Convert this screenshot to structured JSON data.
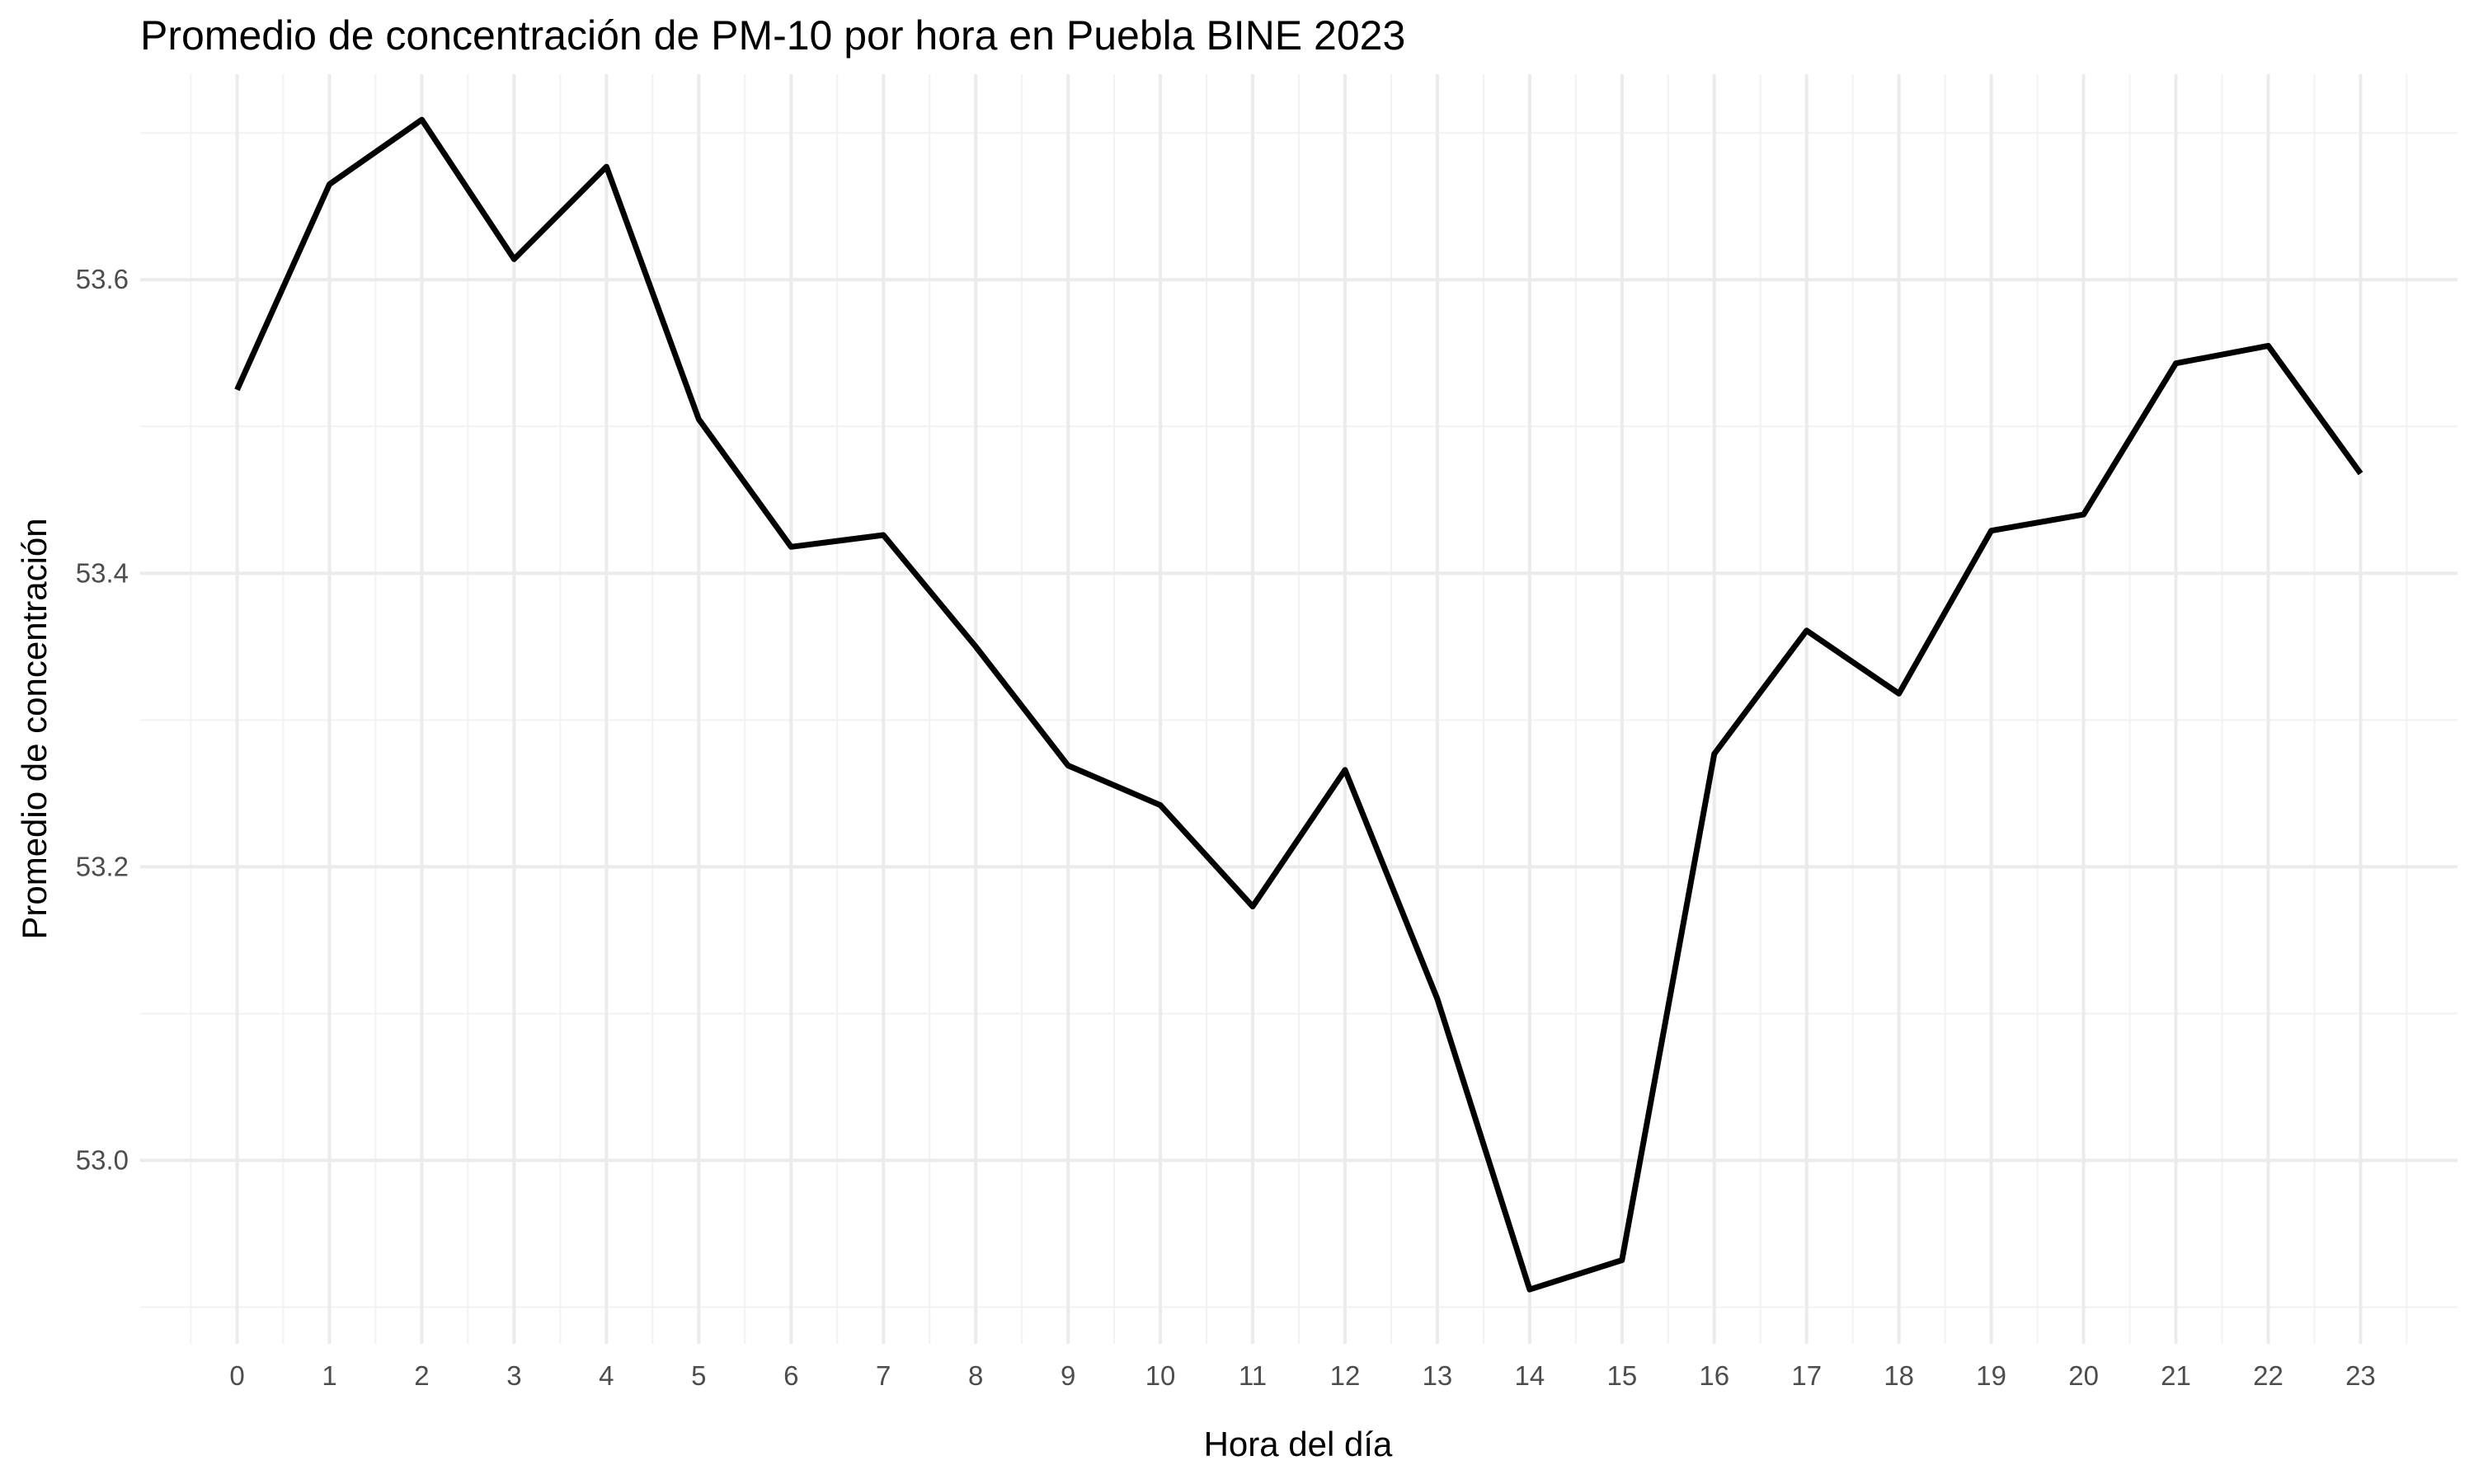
{
  "chart_data": {
    "type": "line",
    "title": "Promedio de concentración de PM-10 por hora en Puebla BINE 2023",
    "xlabel": "Hora del día",
    "ylabel": "Promedio de concentración",
    "x": [
      0,
      1,
      2,
      3,
      4,
      5,
      6,
      7,
      8,
      9,
      10,
      11,
      12,
      13,
      14,
      15,
      16,
      17,
      18,
      19,
      20,
      21,
      22,
      23
    ],
    "x_tick_labels": [
      "0",
      "1",
      "2",
      "3",
      "4",
      "5",
      "6",
      "7",
      "8",
      "9",
      "10",
      "11",
      "12",
      "13",
      "14",
      "15",
      "16",
      "17",
      "18",
      "19",
      "20",
      "21",
      "22",
      "23"
    ],
    "y_tick_values": [
      53.0,
      53.2,
      53.4,
      53.6
    ],
    "y_tick_labels": [
      "53.0",
      "53.2",
      "53.4",
      "53.6"
    ],
    "xlim": [
      -1.05,
      24.05
    ],
    "ylim": [
      52.875,
      53.74
    ],
    "grid": true,
    "legend": "none",
    "series": [
      {
        "values": [
          53.525,
          53.665,
          53.709,
          53.614,
          53.677,
          53.505,
          53.418,
          53.426,
          53.35,
          53.269,
          53.242,
          53.173,
          53.266,
          53.11,
          52.912,
          52.932,
          53.277,
          53.361,
          53.318,
          53.429,
          53.44,
          53.543,
          53.555,
          53.468
        ],
        "color": "#000000"
      }
    ]
  }
}
